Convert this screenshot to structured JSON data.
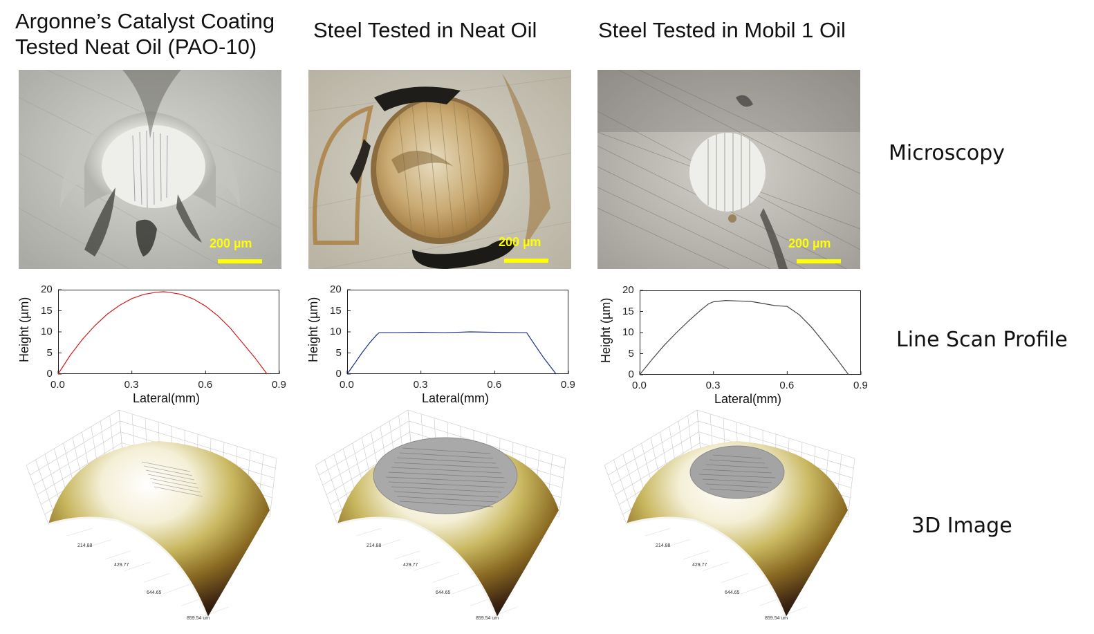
{
  "columns": [
    {
      "title_lines": [
        "Argonne’s Catalyst Coating",
        "Tested Neat Oil (PAO-10)"
      ],
      "scale_label": "200 µm",
      "profile_color": "#d11a1a"
    },
    {
      "title_lines": [
        "Steel Tested in Neat Oil"
      ],
      "scale_label": "200 µm",
      "profile_color": "#1a2a8c"
    },
    {
      "title_lines": [
        "Steel Tested in Mobil 1 Oil"
      ],
      "scale_label": "200 µm",
      "profile_color": "#444444"
    }
  ],
  "row_labels": {
    "microscopy": "Microscopy",
    "line_scan": "Line Scan Profile",
    "image_3d": "3D Image"
  },
  "axis": {
    "xlabel": "Lateral(mm)",
    "ylabel": "Height (µm)",
    "xticks": [
      "0.0",
      "0.3",
      "0.6",
      "0.9"
    ],
    "yticks": [
      "0",
      "5",
      "10",
      "15",
      "20"
    ]
  },
  "surface_axis_labels": [
    "214.88",
    "429.77",
    "644.65",
    "859.54 um"
  ],
  "chart_data": [
    {
      "type": "line",
      "xlabel": "Lateral(mm)",
      "ylabel": "Height (µm)",
      "xlim": [
        0,
        0.9
      ],
      "ylim": [
        0,
        20
      ],
      "x": [
        0.0,
        0.05,
        0.1,
        0.15,
        0.2,
        0.25,
        0.3,
        0.35,
        0.4,
        0.43,
        0.45,
        0.5,
        0.55,
        0.6,
        0.65,
        0.7,
        0.75,
        0.8,
        0.85
      ],
      "y": [
        0.0,
        4.5,
        8.3,
        11.5,
        14.2,
        16.3,
        17.9,
        18.9,
        19.4,
        19.5,
        19.4,
        18.9,
        17.8,
        16.1,
        13.8,
        10.9,
        7.4,
        3.9,
        0.0
      ]
    },
    {
      "type": "line",
      "xlabel": "Lateral(mm)",
      "ylabel": "Height (µm)",
      "xlim": [
        0,
        0.9
      ],
      "ylim": [
        0,
        20
      ],
      "x": [
        0.0,
        0.03,
        0.06,
        0.09,
        0.12,
        0.13,
        0.2,
        0.3,
        0.4,
        0.5,
        0.6,
        0.7,
        0.73,
        0.76,
        0.8,
        0.85
      ],
      "y": [
        0.0,
        2.5,
        5.0,
        7.3,
        9.3,
        9.8,
        9.8,
        9.9,
        9.8,
        10.0,
        9.9,
        9.8,
        9.8,
        7.2,
        3.8,
        0.0
      ]
    },
    {
      "type": "line",
      "xlabel": "Lateral(mm)",
      "ylabel": "Height (µm)",
      "xlim": [
        0,
        0.9
      ],
      "ylim": [
        0,
        20
      ],
      "x": [
        0.0,
        0.05,
        0.1,
        0.15,
        0.2,
        0.25,
        0.28,
        0.3,
        0.35,
        0.4,
        0.45,
        0.5,
        0.55,
        0.6,
        0.65,
        0.7,
        0.75,
        0.8,
        0.85
      ],
      "y": [
        0.0,
        3.6,
        7.0,
        10.0,
        12.8,
        15.4,
        16.8,
        17.3,
        17.6,
        17.5,
        17.4,
        16.9,
        16.4,
        16.2,
        14.2,
        11.2,
        7.6,
        3.9,
        0.0
      ]
    }
  ]
}
